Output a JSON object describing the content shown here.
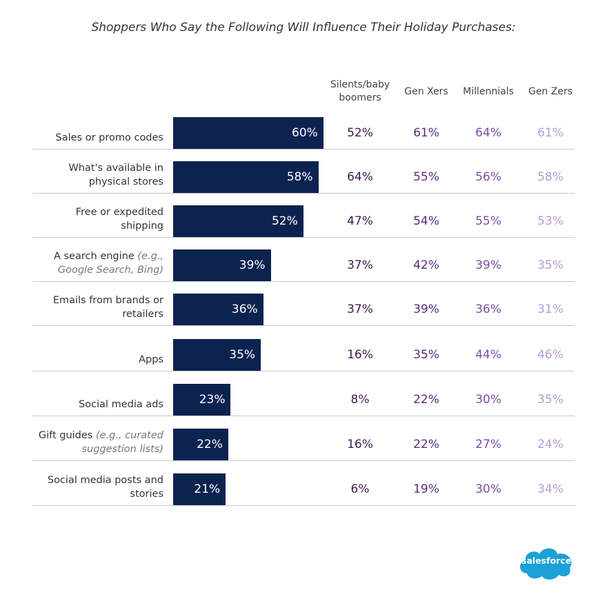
{
  "chart_data": {
    "type": "bar",
    "orientation": "horizontal",
    "title": "Shoppers Who Say the Following Will Influence Their Holiday Purchases:",
    "categories": [
      "Sales or promo codes",
      "What's available in physical stores",
      "Free or expedited shipping",
      "A search engine",
      "Emails from brands or retailers",
      "Apps",
      "Social media ads",
      "Gift guides",
      "Social media posts and stories"
    ],
    "category_notes": {
      "3": "(e.g., Google Search, Bing)",
      "7": "(e.g., curated suggestion lists)"
    },
    "values": [
      60,
      58,
      52,
      39,
      36,
      35,
      23,
      22,
      21
    ],
    "value_labels": [
      "60%",
      "58%",
      "52%",
      "39%",
      "36%",
      "35%",
      "23%",
      "22%",
      "21%"
    ],
    "color": "#0c2350",
    "columns": [
      {
        "name": "Silents/baby boomers",
        "color": "#3d1a55",
        "values": [
          "52%",
          "64%",
          "47%",
          "37%",
          "37%",
          "16%",
          "8%",
          "16%",
          "6%"
        ]
      },
      {
        "name": "Gen Xers",
        "color": "#5b2a7e",
        "values": [
          "61%",
          "55%",
          "54%",
          "42%",
          "39%",
          "35%",
          "22%",
          "22%",
          "19%"
        ]
      },
      {
        "name": "Millennials",
        "color": "#7d4ca3",
        "values": [
          "64%",
          "56%",
          "55%",
          "39%",
          "36%",
          "44%",
          "30%",
          "27%",
          "30%"
        ]
      },
      {
        "name": "Gen Zers",
        "color": "#b59bd2",
        "values": [
          "61%",
          "58%",
          "53%",
          "35%",
          "31%",
          "46%",
          "35%",
          "24%",
          "34%"
        ]
      }
    ],
    "logo": "salesforce"
  }
}
